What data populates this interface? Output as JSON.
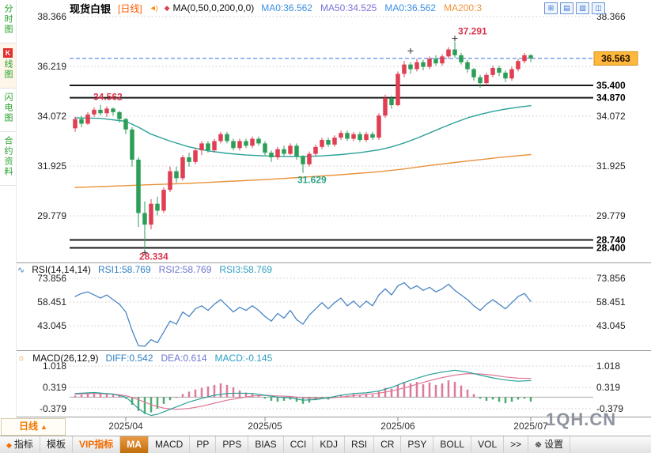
{
  "header": {
    "symbol": "现货白银",
    "period_tag": "[日线]",
    "ma_formula": "MA(0,50,0,200,0,0)",
    "ma_values": [
      {
        "label": "MA0:36.562",
        "color": "#3d8fe0"
      },
      {
        "label": "MA50:34.525",
        "color": "#7b74d8"
      },
      {
        "label": "MA0:36.562",
        "color": "#3d8fe0"
      },
      {
        "label": "MA200:3",
        "color": "#f0953a"
      }
    ],
    "window_icons": [
      {
        "name": "grid-layout-icon",
        "glyph": "⊞"
      },
      {
        "name": "panes-horizontal-icon",
        "glyph": "▤"
      },
      {
        "name": "panes-vertical-icon",
        "glyph": "▥"
      },
      {
        "name": "split-view-icon",
        "glyph": "◫"
      }
    ]
  },
  "sidebar": {
    "tabs": [
      {
        "label": "分时图"
      },
      {
        "badge": "K",
        "label": "线图"
      },
      {
        "label": "闪电图"
      },
      {
        "label": "合约资料"
      }
    ]
  },
  "rsi": {
    "formula": "RSI(14,14,14)",
    "values": [
      {
        "label": "RSI1:58.769",
        "color": "#2f7fc1"
      },
      {
        "label": "RSI2:58.769",
        "color": "#6f74d1"
      },
      {
        "label": "RSI3:58.769",
        "color": "#2f9fc1"
      }
    ]
  },
  "macd": {
    "formula": "MACD(26,12,9)",
    "values": [
      {
        "label": "DIFF:0.542",
        "color": "#2f7fc1"
      },
      {
        "label": "DEA:0.614",
        "color": "#6f74d1"
      },
      {
        "label": "MACD:-0.145",
        "color": "#2f9fc1"
      }
    ]
  },
  "footer": {
    "period_button": "日线",
    "period_arrow": "▲",
    "watermark": "1QH.CN"
  },
  "toolbar": {
    "tabs": [
      {
        "label": "指标",
        "icon": "diamond"
      },
      {
        "label": "模板"
      },
      {
        "label": "VIP指标",
        "vip": true
      },
      {
        "label": "MA",
        "active": true
      },
      {
        "label": "MACD"
      },
      {
        "label": "PP"
      },
      {
        "label": "PPS"
      },
      {
        "label": "BIAS"
      },
      {
        "label": "CCI"
      },
      {
        "label": "KDJ"
      },
      {
        "label": "RSI"
      },
      {
        "label": "CR"
      },
      {
        "label": "PSY"
      },
      {
        "label": "BOLL"
      },
      {
        "label": "VOL"
      },
      {
        "label": ">>"
      },
      {
        "label": "设置",
        "icon": "gear"
      }
    ]
  },
  "chart_data": {
    "type": "candlestick",
    "symbol": "现货白银",
    "period": "日线",
    "x_labels": [
      "2025/04",
      "2025/05",
      "2025/06",
      "2025/07"
    ],
    "month_tick_indices": [
      8,
      30,
      51,
      72
    ],
    "price_axis_left": [
      "38.366",
      "36.219",
      "34.072",
      "31.925",
      "29.779"
    ],
    "price_axis_right": [
      "38.366",
      "34.072",
      "31.925",
      "29.779"
    ],
    "level_lines": [
      "35.400",
      "34.870",
      "28.740",
      "28.400"
    ],
    "current_price": "36.563",
    "rsi_axis": [
      "73.856",
      "58.451",
      "43.045"
    ],
    "macd_axis": [
      "1.018",
      "0.319",
      "-0.379"
    ],
    "candles": [
      [
        33.55,
        34.05,
        33.4,
        33.95
      ],
      [
        33.95,
        34.1,
        33.6,
        33.75
      ],
      [
        33.75,
        34.25,
        33.7,
        34.15
      ],
      [
        34.15,
        34.45,
        34.05,
        34.35
      ],
      [
        34.35,
        34.562,
        34.1,
        34.2
      ],
      [
        34.2,
        34.5,
        34.05,
        34.4
      ],
      [
        34.4,
        34.45,
        34.1,
        34.25
      ],
      [
        34.25,
        34.3,
        33.8,
        33.95
      ],
      [
        33.95,
        34.0,
        33.3,
        33.5
      ],
      [
        33.5,
        33.6,
        31.9,
        32.2
      ],
      [
        32.2,
        32.3,
        29.3,
        29.9
      ],
      [
        29.9,
        30.4,
        28.334,
        29.4
      ],
      [
        29.4,
        30.5,
        29.2,
        30.3
      ],
      [
        30.3,
        30.6,
        29.8,
        30.0
      ],
      [
        30.0,
        31.0,
        29.9,
        30.9
      ],
      [
        30.9,
        31.9,
        30.8,
        31.7
      ],
      [
        31.7,
        31.9,
        31.2,
        31.4
      ],
      [
        31.4,
        32.4,
        31.3,
        32.3
      ],
      [
        32.3,
        32.5,
        31.9,
        32.1
      ],
      [
        32.1,
        32.7,
        32.0,
        32.6
      ],
      [
        32.6,
        33.0,
        32.4,
        32.9
      ],
      [
        32.9,
        33.0,
        32.5,
        32.6
      ],
      [
        32.6,
        33.1,
        32.5,
        33.0
      ],
      [
        33.0,
        33.4,
        32.9,
        33.3
      ],
      [
        33.3,
        33.4,
        32.9,
        33.0
      ],
      [
        33.0,
        33.1,
        32.6,
        32.7
      ],
      [
        32.7,
        33.1,
        32.6,
        33.0
      ],
      [
        33.0,
        33.1,
        32.7,
        32.8
      ],
      [
        32.8,
        33.2,
        32.7,
        33.1
      ],
      [
        33.1,
        33.2,
        32.8,
        32.9
      ],
      [
        32.9,
        33.0,
        32.4,
        32.5
      ],
      [
        32.5,
        32.6,
        32.1,
        32.3
      ],
      [
        32.3,
        32.75,
        32.2,
        32.65
      ],
      [
        32.65,
        32.8,
        32.35,
        32.45
      ],
      [
        32.45,
        32.9,
        32.4,
        32.8
      ],
      [
        32.8,
        32.9,
        32.2,
        32.35
      ],
      [
        32.35,
        32.4,
        31.629,
        32.0
      ],
      [
        32.0,
        32.55,
        31.9,
        32.45
      ],
      [
        32.45,
        32.85,
        32.35,
        32.75
      ],
      [
        32.75,
        33.15,
        32.65,
        33.05
      ],
      [
        33.05,
        33.15,
        32.75,
        32.85
      ],
      [
        32.85,
        33.25,
        32.75,
        33.15
      ],
      [
        33.15,
        33.45,
        33.05,
        33.35
      ],
      [
        33.35,
        33.45,
        33.0,
        33.1
      ],
      [
        33.1,
        33.4,
        33.0,
        33.3
      ],
      [
        33.3,
        33.4,
        32.95,
        33.05
      ],
      [
        33.05,
        33.4,
        32.95,
        33.3
      ],
      [
        33.3,
        33.4,
        33.05,
        33.15
      ],
      [
        33.15,
        34.2,
        33.05,
        34.1
      ],
      [
        34.1,
        35.0,
        34.0,
        34.85
      ],
      [
        34.85,
        34.95,
        34.4,
        34.55
      ],
      [
        34.55,
        36.0,
        34.5,
        35.9
      ],
      [
        35.9,
        36.45,
        35.75,
        36.3
      ],
      [
        36.3,
        36.4,
        35.9,
        36.1
      ],
      [
        36.1,
        36.55,
        36.0,
        36.4
      ],
      [
        36.4,
        36.5,
        36.05,
        36.2
      ],
      [
        36.2,
        36.65,
        36.1,
        36.55
      ],
      [
        36.55,
        36.7,
        36.25,
        36.35
      ],
      [
        36.35,
        36.75,
        36.25,
        36.65
      ],
      [
        36.65,
        37.05,
        36.55,
        36.95
      ],
      [
        36.95,
        37.291,
        36.6,
        36.7
      ],
      [
        36.7,
        36.8,
        36.3,
        36.4
      ],
      [
        36.4,
        36.5,
        35.95,
        36.1
      ],
      [
        36.1,
        36.15,
        35.6,
        35.75
      ],
      [
        35.75,
        35.85,
        35.3,
        35.5
      ],
      [
        35.5,
        35.95,
        35.4,
        35.85
      ],
      [
        35.85,
        36.25,
        35.75,
        36.15
      ],
      [
        36.15,
        36.25,
        35.8,
        35.95
      ],
      [
        35.95,
        36.05,
        35.55,
        35.7
      ],
      [
        35.7,
        36.2,
        35.6,
        36.1
      ],
      [
        36.1,
        36.55,
        36.0,
        36.45
      ],
      [
        36.45,
        36.8,
        36.35,
        36.7
      ],
      [
        36.7,
        36.75,
        36.4,
        36.563
      ]
    ],
    "ma50": [
      [
        0,
        34.0
      ],
      [
        4,
        33.98
      ],
      [
        8,
        33.85
      ],
      [
        10,
        33.6
      ],
      [
        12,
        33.3
      ],
      [
        15,
        33.0
      ],
      [
        18,
        32.75
      ],
      [
        21,
        32.58
      ],
      [
        24,
        32.47
      ],
      [
        27,
        32.4
      ],
      [
        30,
        32.36
      ],
      [
        33,
        32.34
      ],
      [
        36,
        32.33
      ],
      [
        39,
        32.36
      ],
      [
        42,
        32.42
      ],
      [
        45,
        32.5
      ],
      [
        48,
        32.62
      ],
      [
        50,
        32.75
      ],
      [
        52,
        32.92
      ],
      [
        54,
        33.12
      ],
      [
        56,
        33.35
      ],
      [
        58,
        33.58
      ],
      [
        60,
        33.8
      ],
      [
        62,
        34.0
      ],
      [
        64,
        34.15
      ],
      [
        66,
        34.28
      ],
      [
        68,
        34.38
      ],
      [
        70,
        34.46
      ],
      [
        72,
        34.525
      ]
    ],
    "ma200": [
      [
        0,
        31.0
      ],
      [
        6,
        31.06
      ],
      [
        12,
        31.12
      ],
      [
        18,
        31.18
      ],
      [
        24,
        31.26
      ],
      [
        30,
        31.34
      ],
      [
        36,
        31.44
      ],
      [
        42,
        31.55
      ],
      [
        48,
        31.68
      ],
      [
        52,
        31.8
      ],
      [
        56,
        31.95
      ],
      [
        60,
        32.08
      ],
      [
        64,
        32.2
      ],
      [
        68,
        32.32
      ],
      [
        72,
        32.42
      ]
    ],
    "rsi_points": [
      62,
      64,
      65,
      63,
      61,
      63,
      60,
      57,
      52,
      40,
      30,
      28,
      34,
      32,
      39,
      46,
      44,
      52,
      49,
      54,
      56,
      53,
      57,
      60,
      56,
      52,
      55,
      53,
      56,
      53,
      49,
      46,
      51,
      48,
      53,
      47,
      44,
      50,
      54,
      58,
      54,
      58,
      61,
      56,
      59,
      55,
      59,
      56,
      63,
      67,
      63,
      69,
      71,
      67,
      69,
      66,
      68,
      65,
      67,
      70,
      66,
      63,
      60,
      56,
      53,
      57,
      60,
      57,
      54,
      58,
      62,
      64,
      58.769
    ],
    "macd_series": {
      "diff": [
        [
          0,
          0.12
        ],
        [
          3,
          0.15
        ],
        [
          6,
          0.1
        ],
        [
          8,
          0.0
        ],
        [
          9,
          -0.18
        ],
        [
          10,
          -0.38
        ],
        [
          11,
          -0.52
        ],
        [
          12,
          -0.6
        ],
        [
          13,
          -0.56
        ],
        [
          14,
          -0.48
        ],
        [
          15,
          -0.4
        ],
        [
          16,
          -0.32
        ],
        [
          17,
          -0.24
        ],
        [
          18,
          -0.16
        ],
        [
          19,
          -0.1
        ],
        [
          20,
          -0.04
        ],
        [
          22,
          0.06
        ],
        [
          24,
          0.12
        ],
        [
          26,
          0.13
        ],
        [
          28,
          0.12
        ],
        [
          30,
          0.06
        ],
        [
          32,
          0.0
        ],
        [
          34,
          -0.02
        ],
        [
          36,
          -0.1
        ],
        [
          38,
          -0.08
        ],
        [
          40,
          -0.02
        ],
        [
          42,
          0.06
        ],
        [
          44,
          0.12
        ],
        [
          46,
          0.14
        ],
        [
          48,
          0.2
        ],
        [
          50,
          0.32
        ],
        [
          52,
          0.48
        ],
        [
          54,
          0.62
        ],
        [
          56,
          0.74
        ],
        [
          58,
          0.82
        ],
        [
          60,
          0.88
        ],
        [
          62,
          0.82
        ],
        [
          64,
          0.72
        ],
        [
          66,
          0.63
        ],
        [
          68,
          0.56
        ],
        [
          70,
          0.52
        ],
        [
          72,
          0.542
        ]
      ],
      "dea": [
        [
          0,
          0.1
        ],
        [
          3,
          0.12
        ],
        [
          6,
          0.1
        ],
        [
          8,
          0.05
        ],
        [
          10,
          -0.08
        ],
        [
          12,
          -0.25
        ],
        [
          14,
          -0.36
        ],
        [
          16,
          -0.4
        ],
        [
          18,
          -0.37
        ],
        [
          20,
          -0.3
        ],
        [
          22,
          -0.2
        ],
        [
          24,
          -0.1
        ],
        [
          26,
          -0.03
        ],
        [
          28,
          0.04
        ],
        [
          30,
          0.06
        ],
        [
          32,
          0.04
        ],
        [
          34,
          0.02
        ],
        [
          36,
          -0.02
        ],
        [
          38,
          -0.04
        ],
        [
          40,
          -0.03
        ],
        [
          42,
          0.0
        ],
        [
          44,
          0.05
        ],
        [
          46,
          0.09
        ],
        [
          48,
          0.13
        ],
        [
          50,
          0.2
        ],
        [
          52,
          0.3
        ],
        [
          54,
          0.42
        ],
        [
          56,
          0.54
        ],
        [
          58,
          0.64
        ],
        [
          60,
          0.72
        ],
        [
          62,
          0.77
        ],
        [
          64,
          0.76
        ],
        [
          66,
          0.72
        ],
        [
          68,
          0.66
        ],
        [
          70,
          0.62
        ],
        [
          72,
          0.614
        ]
      ],
      "hist": [
        0.05,
        0.08,
        0.1,
        0.1,
        0.12,
        0.1,
        0.08,
        0.05,
        -0.05,
        -0.25,
        -0.45,
        -0.55,
        -0.5,
        -0.38,
        -0.22,
        -0.1,
        0.0,
        0.1,
        0.18,
        0.25,
        0.3,
        0.35,
        0.4,
        0.45,
        0.4,
        0.32,
        0.22,
        0.15,
        0.1,
        0.05,
        -0.05,
        -0.12,
        -0.15,
        -0.12,
        -0.08,
        -0.15,
        -0.22,
        -0.18,
        -0.1,
        -0.02,
        -0.08,
        0.02,
        0.08,
        0.05,
        0.1,
        0.05,
        0.1,
        0.08,
        0.18,
        0.3,
        0.28,
        0.4,
        0.5,
        0.45,
        0.5,
        0.42,
        0.48,
        0.4,
        0.45,
        0.55,
        0.5,
        0.38,
        0.25,
        0.1,
        -0.05,
        -0.12,
        -0.08,
        -0.15,
        -0.2,
        -0.15,
        -0.08,
        -0.05,
        -0.145
      ]
    },
    "annotations": [
      {
        "text": "34.562",
        "index": 4,
        "value": 34.562,
        "color": "#d8374f",
        "placement": "above",
        "cross": false
      },
      {
        "text": "37.291",
        "index": 60,
        "value": 37.291,
        "color": "#d8374f",
        "placement": "above_right",
        "cross": true
      },
      {
        "text": "",
        "index": 53,
        "value": 36.75,
        "color": "#444444",
        "placement": "cross_only",
        "cross": true
      },
      {
        "text": "31.629",
        "index": 36,
        "value": 31.629,
        "color": "#2aa183",
        "placement": "below_right",
        "cross": false
      },
      {
        "text": "28.334",
        "index": 11,
        "value": 28.334,
        "color": "#d8374f",
        "placement": "below_right",
        "cross": true
      }
    ],
    "colors": {
      "up": "#e03e52",
      "down": "#2c9e57",
      "ma50": "#2aa198",
      "ma200": "#e8923a",
      "rsi": "#4a85c2",
      "diff": "#2aa198",
      "dea": "#e07898",
      "hist_pos": "#d8628a",
      "hist_neg": "#2c9e57",
      "current_line": "#3a6fe0",
      "current_box_bg": "#ffb83d",
      "level_line": "#1a1a1a"
    }
  }
}
